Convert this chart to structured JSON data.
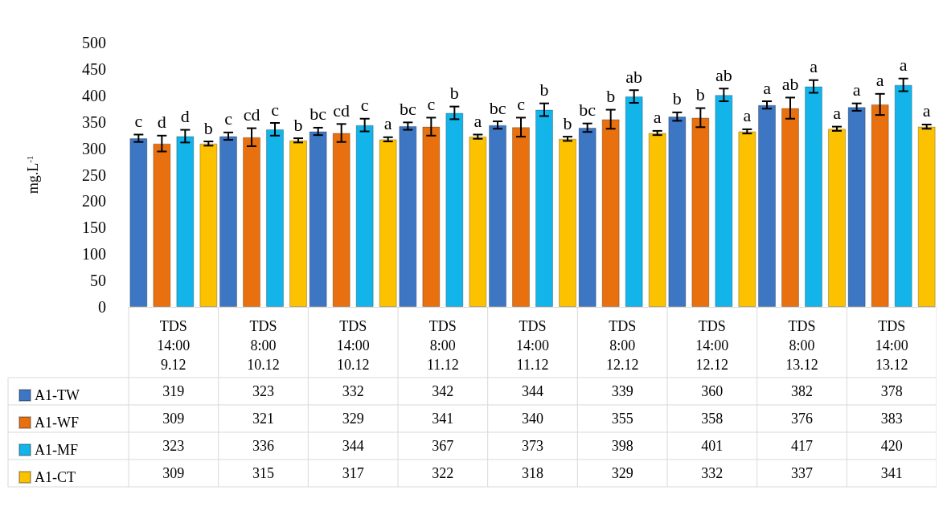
{
  "chart_data": {
    "type": "bar",
    "ylabel": "mg.L$^{-1}$",
    "categories": [
      "TDS\n14:00\n9.12",
      "TDS\n8:00\n10.12",
      "TDS\n14:00\n10.12",
      "TDS\n8:00\n11.12",
      "TDS\n14:00\n11.12",
      "TDS\n8:00\n12.12",
      "TDS\n14:00\n12.12",
      "TDS\n8:00\n13.12",
      "TDS\n14:00\n13.12"
    ],
    "series": [
      {
        "name": "A1-TW",
        "color": "#3d76c3",
        "values": [
          319,
          323,
          332,
          342,
          344,
          339,
          360,
          382,
          378
        ],
        "errors": [
          7,
          7,
          7,
          7,
          7,
          8,
          8,
          7,
          7
        ]
      },
      {
        "name": "A1-WF",
        "color": "#e8700f",
        "values": [
          309,
          321,
          329,
          341,
          340,
          355,
          358,
          376,
          383
        ],
        "errors": [
          15,
          17,
          17,
          17,
          18,
          18,
          18,
          20,
          20
        ]
      },
      {
        "name": "A1-MF",
        "color": "#13b4ea",
        "values": [
          323,
          336,
          344,
          367,
          373,
          398,
          401,
          417,
          420
        ],
        "errors": [
          12,
          12,
          12,
          12,
          12,
          12,
          12,
          12,
          12
        ]
      },
      {
        "name": "A1-CT",
        "color": "#fcc200",
        "values": [
          309,
          315,
          317,
          322,
          318,
          329,
          332,
          337,
          341
        ],
        "errors": [
          4,
          4,
          4,
          4,
          4,
          4,
          4,
          4,
          4
        ]
      }
    ],
    "annotations": [
      {
        "text": "c",
        "x": "TDS\n14:00\n9.12",
        "y": 319
      },
      {
        "text": "d",
        "x": "TDS\n14:00\n9.12",
        "y": 309
      },
      {
        "text": "d",
        "x": "TDS\n14:00\n9.12",
        "y": 323
      },
      {
        "text": "b",
        "x": "TDS\n14:00\n9.12",
        "y": 309
      },
      {
        "text": "c",
        "x": "TDS\n8:00\n10.12",
        "y": 323
      },
      {
        "text": "cd",
        "x": "TDS\n8:00\n10.12",
        "y": 321
      },
      {
        "text": "c",
        "x": "TDS\n8:00\n10.12",
        "y": 336
      },
      {
        "text": "b",
        "x": "TDS\n8:00\n10.12",
        "y": 315
      },
      {
        "text": "bc",
        "x": "TDS\n14:00\n10.12",
        "y": 332
      },
      {
        "text": "cd",
        "x": "TDS\n14:00\n10.12",
        "y": 329
      },
      {
        "text": "c",
        "x": "TDS\n14:00\n10.12",
        "y": 344
      },
      {
        "text": "a",
        "x": "TDS\n14:00\n10.12",
        "y": 317
      },
      {
        "text": "bc",
        "x": "TDS\n8:00\n11.12",
        "y": 342
      },
      {
        "text": "c",
        "x": "TDS\n8:00\n11.12",
        "y": 341
      },
      {
        "text": "b",
        "x": "TDS\n8:00\n11.12",
        "y": 367
      },
      {
        "text": "a",
        "x": "TDS\n8:00\n11.12",
        "y": 322
      },
      {
        "text": "bc",
        "x": "TDS\n14:00\n11.12",
        "y": 344
      },
      {
        "text": "c",
        "x": "TDS\n14:00\n11.12",
        "y": 340
      },
      {
        "text": "b",
        "x": "TDS\n14:00\n11.12",
        "y": 373
      },
      {
        "text": "b",
        "x": "TDS\n14:00\n11.12",
        "y": 318
      },
      {
        "text": "bc",
        "x": "TDS\n8:00\n12.12",
        "y": 339
      },
      {
        "text": "b",
        "x": "TDS\n8:00\n12.12",
        "y": 355
      },
      {
        "text": "ab",
        "x": "TDS\n8:00\n12.12",
        "y": 398
      },
      {
        "text": "a",
        "x": "TDS\n8:00\n12.12",
        "y": 329
      },
      {
        "text": "b",
        "x": "TDS\n14:00\n12.12",
        "y": 360
      },
      {
        "text": "b",
        "x": "TDS\n14:00\n12.12",
        "y": 358
      },
      {
        "text": "ab",
        "x": "TDS\n14:00\n12.12",
        "y": 401
      },
      {
        "text": "a",
        "x": "TDS\n14:00\n12.12",
        "y": 332
      },
      {
        "text": "a",
        "x": "TDS\n8:00\n13.12",
        "y": 382
      },
      {
        "text": "ab",
        "x": "TDS\n8:00\n13.12",
        "y": 376
      },
      {
        "text": "a",
        "x": "TDS\n8:00\n13.12",
        "y": 417
      },
      {
        "text": "a",
        "x": "TDS\n8:00\n13.12",
        "y": 337
      },
      {
        "text": "a",
        "x": "TDS\n14:00\n13.12",
        "y": 378
      },
      {
        "text": "a",
        "x": "TDS\n14:00\n13.12",
        "y": 383
      },
      {
        "text": "a",
        "x": "TDS\n14:00\n13.12",
        "y": 420
      },
      {
        "text": "a",
        "x": "TDS\n14:00\n13.12",
        "y": 341
      }
    ],
    "ylim": [
      0,
      500
    ],
    "yticks": [
      0,
      50,
      100,
      150,
      200,
      250,
      300,
      350,
      400,
      450,
      500
    ],
    "grid": false,
    "legend": "bottom",
    "data_labels": true
  }
}
